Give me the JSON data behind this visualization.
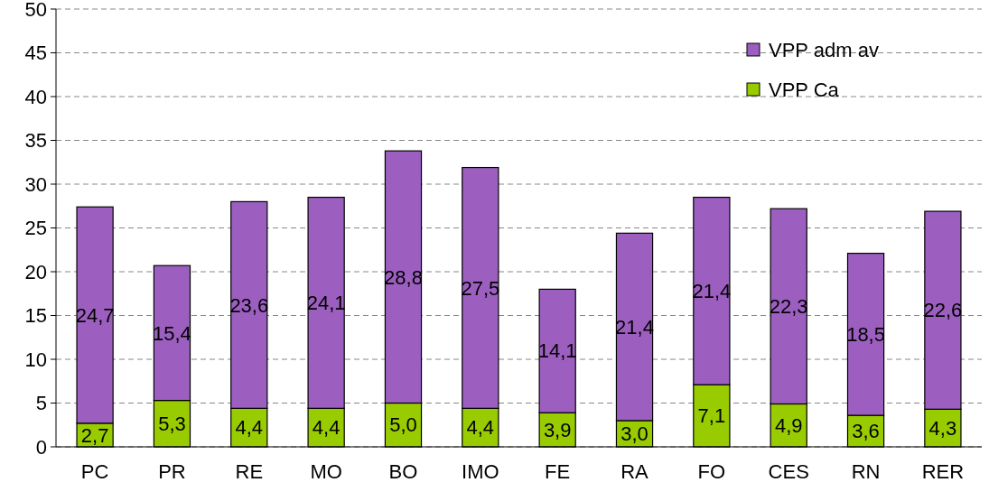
{
  "chart_data": {
    "type": "bar",
    "stacked": true,
    "categories": [
      "PC",
      "PR",
      "RE",
      "MO",
      "BO",
      "IMO",
      "FE",
      "RA",
      "FO",
      "CES",
      "RN",
      "RER"
    ],
    "series": [
      {
        "name": "VPP Ca",
        "color": "#99cc00",
        "values": [
          2.7,
          5.3,
          4.4,
          4.4,
          5.0,
          4.4,
          3.9,
          3.0,
          7.1,
          4.9,
          3.6,
          4.3
        ],
        "value_labels": [
          "2,7",
          "5,3",
          "4,4",
          "4,4",
          "5,0",
          "4,4",
          "3,9",
          "3,0",
          "7,1",
          "4,9",
          "3,6",
          "4,3"
        ]
      },
      {
        "name": "VPP adm av",
        "color": "#9c5fc0",
        "values": [
          24.7,
          15.4,
          23.6,
          24.1,
          28.8,
          27.5,
          14.1,
          21.4,
          21.4,
          22.3,
          18.5,
          22.6
        ],
        "value_labels": [
          "24,7",
          "15,4",
          "23,6",
          "24,1",
          "28,8",
          "27,5",
          "14,1",
          "21,4",
          "21,4",
          "22,3",
          "18,5",
          "22,6"
        ]
      }
    ],
    "ylim": [
      0,
      50
    ],
    "yticks": [
      0,
      5,
      10,
      15,
      20,
      25,
      30,
      35,
      40,
      45,
      50
    ],
    "grid": "y",
    "legend": "top right"
  }
}
